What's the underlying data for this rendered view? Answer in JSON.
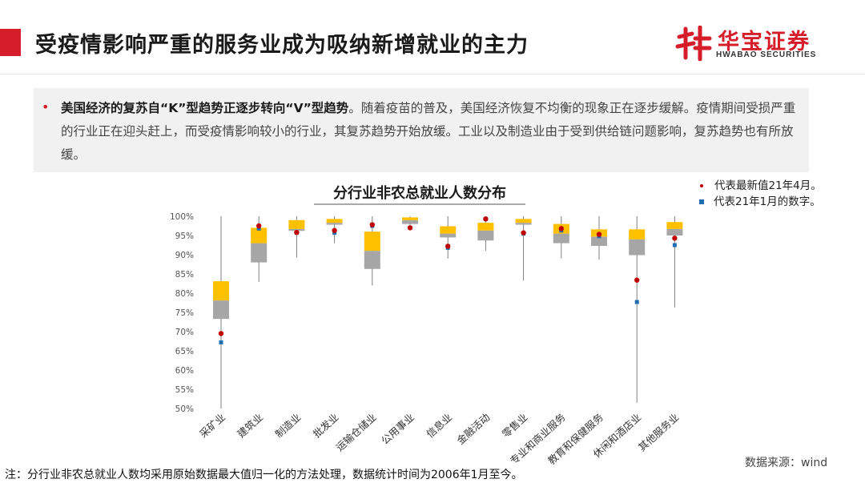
{
  "header": {
    "title": "受疫情影响严重的服务业成为吸纳新增就业的主力",
    "logo_cn": "华宝证券",
    "logo_en": "HWABAO SECURITIES"
  },
  "summary": {
    "bold_text": "美国经济的复苏自“K”型趋势正逐步转向“V”型趋势",
    "rest_text": "。随着疫苗的普及，美国经济恢复不均衡的现象正在逐步缓解。疫情期间受损严重的行业正在迎头赶上，而受疫情影响较小的行业，其复苏趋势开始放缓。工业以及制造业由于受到供给链问题影响，复苏趋势也有所放缓。"
  },
  "legend": {
    "latest": "代表最新值21年4月。",
    "jan": "代表21年1月的数字。"
  },
  "footer": {
    "note": "注：分行业非农总就业人数均采用原始数据最大值归一化的方法处理，数据统计时间为2006年1月至今。",
    "source": "数据来源：wind"
  },
  "colors": {
    "accent": "#d61d2a",
    "upper_box": "#ffc000",
    "lower_box": "#a6a6a6",
    "latest_marker": "#c00000",
    "jan_marker": "#1f6fb2"
  },
  "chart_data": {
    "type": "box",
    "title": "分行业非农总就业人数分布",
    "ylim": [
      0.5,
      1.0
    ],
    "y_ticks": [
      "100%",
      "95%",
      "90%",
      "85%",
      "80%",
      "75%",
      "70%",
      "65%",
      "60%",
      "55%",
      "50%"
    ],
    "y_tick_values": [
      1.0,
      0.95,
      0.9,
      0.85,
      0.8,
      0.75,
      0.7,
      0.65,
      0.6,
      0.55,
      0.5
    ],
    "categories": [
      "采矿业",
      "建筑业",
      "制造业",
      "批发业",
      "运输仓储业",
      "公用事业",
      "信息业",
      "金融活动",
      "零售业",
      "专业和商业服务",
      "教育和保健服务",
      "休闲和酒店业",
      "其他服务业"
    ],
    "series": [
      {
        "name": "min",
        "values": [
          0.5,
          0.829,
          0.893,
          0.93,
          0.82,
          0.97,
          0.89,
          0.91,
          0.833,
          0.89,
          0.887,
          0.515,
          0.763
        ]
      },
      {
        "name": "q1",
        "values": [
          0.733,
          0.88,
          0.962,
          0.978,
          0.863,
          0.98,
          0.945,
          0.937,
          0.978,
          0.93,
          0.923,
          0.899,
          0.95
        ]
      },
      {
        "name": "median",
        "values": [
          0.781,
          0.93,
          0.967,
          0.983,
          0.91,
          0.99,
          0.955,
          0.963,
          0.983,
          0.955,
          0.947,
          0.94,
          0.967
        ]
      },
      {
        "name": "q3",
        "values": [
          0.831,
          0.97,
          0.99,
          0.993,
          0.96,
          0.997,
          0.974,
          0.983,
          0.993,
          0.98,
          0.966,
          0.966,
          0.985
        ]
      },
      {
        "name": "max",
        "values": [
          1.0,
          1.0,
          1.0,
          1.0,
          1.0,
          1.0,
          1.0,
          1.0,
          1.0,
          1.0,
          1.0,
          1.0,
          1.0
        ]
      },
      {
        "name": "代表最新值21年4月",
        "values": [
          0.695,
          0.975,
          0.958,
          0.963,
          0.978,
          0.97,
          0.922,
          0.993,
          0.957,
          0.968,
          0.953,
          0.834,
          0.943
        ]
      },
      {
        "name": "代表21年1月的数字",
        "values": [
          0.672,
          0.968,
          0.957,
          0.957,
          0.975,
          0.97,
          0.918,
          0.993,
          0.955,
          0.963,
          0.948,
          0.777,
          0.925
        ]
      }
    ]
  }
}
